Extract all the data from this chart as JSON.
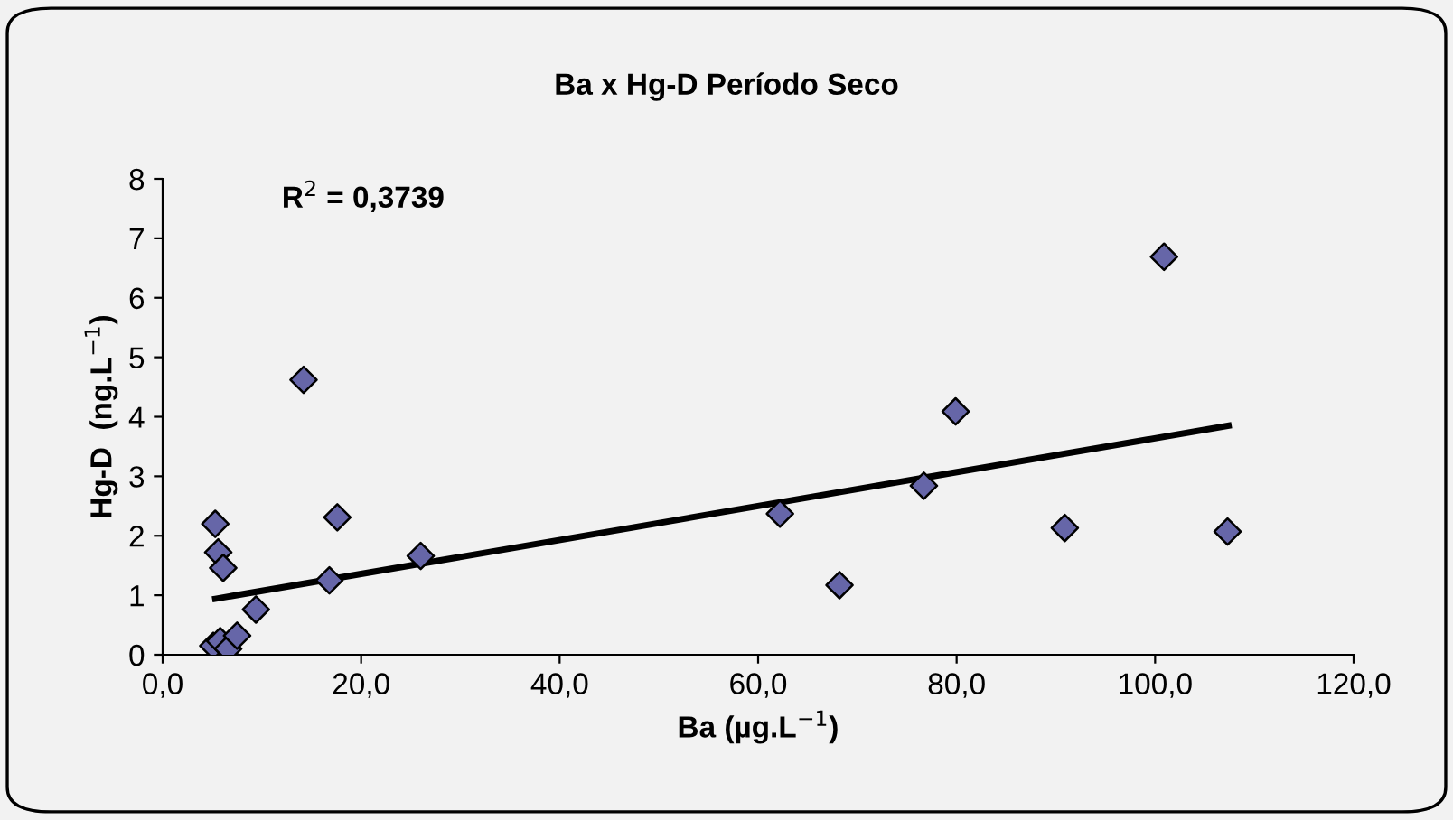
{
  "chart_data": {
    "type": "scatter",
    "title": "Ba x Hg-D Período Seco",
    "xlabel": "Ba (µg.L$^{−1}$)",
    "ylabel": "Hg-D  (ng.L$^{−1}$)",
    "annotations": [
      "R$^{2}$ = 0,3739"
    ],
    "series": [
      {
        "color": "#6666a8",
        "marker": "diamond",
        "x": [
          5.3,
          5.6,
          6.1,
          5.1,
          5.8,
          6.6,
          7.5,
          9.4,
          14.2,
          16.8,
          17.6,
          26.0,
          62.2,
          68.2,
          76.7,
          79.9,
          90.9,
          100.9,
          107.3
        ],
        "values": [
          2.2,
          1.72,
          1.46,
          0.15,
          0.23,
          0.1,
          0.32,
          0.76,
          4.62,
          1.25,
          2.31,
          1.66,
          2.37,
          1.17,
          2.84,
          4.09,
          2.13,
          6.69,
          2.07
        ]
      },
      {
        "type": "line",
        "color": "#000000",
        "marker": "none",
        "line_style": "solid",
        "x": [
          5.3,
          107.4
        ],
        "values": [
          0.94,
          3.85
        ]
      }
    ],
    "xlim": [
      0,
      120
    ],
    "xticks": [
      {
        "value": 0,
        "label": "0,0"
      },
      {
        "value": 20,
        "label": "20,0"
      },
      {
        "value": 40,
        "label": "40,0"
      },
      {
        "value": 60,
        "label": "60,0"
      },
      {
        "value": 80,
        "label": "80,0"
      },
      {
        "value": 100,
        "label": "100,0"
      },
      {
        "value": 120,
        "label": "120,0"
      }
    ],
    "ylim": [
      0,
      8
    ],
    "yticks": [
      0,
      1,
      2,
      3,
      4,
      5,
      6,
      7,
      8
    ],
    "grid": false,
    "legend": false
  }
}
